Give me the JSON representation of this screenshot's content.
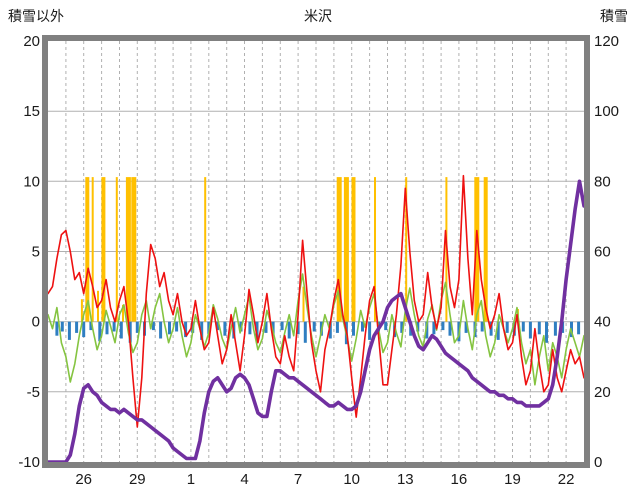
{
  "header": {
    "left_axis_title": "積雪以外",
    "title": "米沢",
    "right_axis_title": "積雪"
  },
  "chart_data": {
    "type": "line",
    "title": "米沢",
    "left_axis_label": "積雪以外",
    "right_axis_label": "積雪",
    "x_range": [
      0,
      30
    ],
    "left_range": [
      -10,
      20
    ],
    "right_range": [
      0,
      120
    ],
    "left_tick_values": [
      20,
      15,
      10,
      5,
      0,
      -5,
      -10
    ],
    "left_tick_labels": [
      "20",
      "15",
      "10",
      "5",
      "0",
      "-5",
      "-10"
    ],
    "right_tick_values": [
      120,
      100,
      80,
      60,
      40,
      20,
      0
    ],
    "right_tick_labels": [
      "120",
      "100",
      "80",
      "60",
      "40",
      "20",
      "0"
    ],
    "x_tick_days": [
      2,
      5,
      8,
      11,
      14,
      17,
      20,
      23,
      26,
      29
    ],
    "x_tick_labels": [
      "26",
      "29",
      "1",
      "4",
      "7",
      "10",
      "13",
      "16",
      "19",
      "22"
    ],
    "grid": {
      "horizontal": "solid",
      "vertical": "dashed-daily"
    },
    "colors": {
      "red": "#ee1111",
      "green": "#85c441",
      "blue": "#2f7ec1",
      "yellow": "#ffc000",
      "purple": "#7030a0",
      "border": "#808080",
      "grid": "#b0b0b0",
      "text": "#1a1a1a"
    },
    "series_start": 0,
    "series_step": 0.25,
    "series": {
      "red_line": {
        "axis": "left",
        "color_key": "red",
        "width": 1.6,
        "values": [
          2.0,
          2.5,
          4.5,
          6.2,
          6.5,
          5.0,
          3.0,
          3.5,
          2.0,
          3.8,
          2.5,
          1.0,
          1.5,
          3.0,
          1.0,
          0.0,
          1.5,
          2.5,
          0.0,
          -4.0,
          -7.5,
          -4.0,
          2.0,
          5.5,
          4.5,
          2.5,
          3.5,
          1.5,
          0.5,
          2.0,
          0.0,
          -1.0,
          -0.5,
          1.5,
          -0.5,
          -2.0,
          -1.5,
          1.0,
          -1.0,
          -3.0,
          -2.0,
          0.5,
          -1.5,
          -3.5,
          -1.0,
          2.3,
          0.5,
          -1.5,
          0.0,
          2.0,
          -0.5,
          -2.5,
          -3.0,
          -1.0,
          -2.5,
          -3.5,
          0.5,
          5.8,
          2.0,
          -1.5,
          -3.5,
          -5.0,
          -2.0,
          -0.5,
          1.5,
          3.0,
          0.5,
          -1.0,
          -4.0,
          -6.8,
          -4.0,
          -1.0,
          1.5,
          2.5,
          -1.0,
          -4.5,
          -4.5,
          -2.0,
          0.5,
          4.0,
          9.5,
          5.0,
          1.5,
          0.0,
          0.5,
          3.5,
          1.0,
          -0.5,
          1.0,
          6.5,
          2.5,
          1.0,
          3.0,
          10.4,
          4.5,
          0.5,
          6.5,
          3.0,
          1.0,
          -0.5,
          0.5,
          2.0,
          -0.5,
          -2.0,
          -1.5,
          0.5,
          -2.5,
          -4.5,
          -3.5,
          -0.5,
          -3.0,
          -5.0,
          -4.5,
          -2.0,
          -4.0,
          -5.0,
          -3.5,
          -2.0,
          -3.0,
          -2.5,
          -4.0
        ]
      },
      "green_line": {
        "axis": "left",
        "color_key": "green",
        "width": 1.6,
        "values": [
          0.5,
          -0.5,
          1.0,
          -1.5,
          -2.5,
          -4.3,
          -3.0,
          -1.0,
          0.5,
          1.5,
          -0.5,
          -2.0,
          -1.0,
          0.8,
          -0.3,
          -1.5,
          0.5,
          1.2,
          -0.8,
          -2.2,
          -1.5,
          0.5,
          1.5,
          -0.5,
          1.0,
          2.0,
          0.0,
          -1.5,
          -0.5,
          1.0,
          -1.0,
          -2.5,
          -1.5,
          0.5,
          -0.5,
          -1.8,
          -0.8,
          1.2,
          0.2,
          -1.2,
          -2.0,
          -0.5,
          1.0,
          -0.8,
          0.5,
          1.8,
          -0.5,
          -2.0,
          -1.2,
          0.8,
          -0.2,
          -1.5,
          -2.2,
          -0.8,
          0.5,
          -1.0,
          1.5,
          3.4,
          1.0,
          -1.0,
          -2.5,
          -1.0,
          0.5,
          -0.5,
          1.2,
          2.2,
          0.2,
          -1.2,
          -2.8,
          -1.2,
          0.8,
          -0.4,
          1.0,
          2.0,
          -0.5,
          -2.2,
          -1.5,
          0.5,
          -0.8,
          -1.8,
          0.8,
          2.4,
          0.5,
          -1.0,
          -1.8,
          0.2,
          1.2,
          -0.6,
          1.5,
          2.8,
          0.5,
          -1.5,
          -1.0,
          1.5,
          -0.5,
          -2.0,
          0.5,
          1.5,
          -1.0,
          -2.5,
          -1.5,
          0.5,
          -0.5,
          -1.5,
          -0.5,
          1.0,
          -1.5,
          -3.0,
          -2.0,
          -4.5,
          -2.5,
          -1.0,
          -3.5,
          -1.5,
          -2.5,
          -4.0,
          -2.0,
          -0.5,
          -1.5,
          -2.5,
          -1.0
        ]
      },
      "purple_line": {
        "axis": "right",
        "color_key": "purple",
        "width": 3.6,
        "values": [
          0,
          0,
          0,
          0,
          0,
          2,
          8,
          16,
          21,
          22,
          20,
          19,
          17,
          16,
          15,
          15,
          14,
          15,
          14,
          13,
          12,
          12,
          11,
          10,
          9,
          8,
          7,
          6,
          4,
          3,
          2,
          1,
          1,
          1,
          6,
          14,
          20,
          23,
          24,
          22,
          20,
          21,
          24,
          25,
          24,
          22,
          18,
          14,
          13,
          13,
          20,
          26,
          26,
          25,
          24,
          24,
          23,
          22,
          21,
          20,
          19,
          18,
          17,
          16,
          16,
          17,
          16,
          15,
          15,
          16,
          20,
          26,
          32,
          36,
          38,
          40,
          44,
          46,
          47,
          48,
          44,
          40,
          36,
          33,
          32,
          34,
          36,
          35,
          33,
          31,
          30,
          29,
          28,
          27,
          26,
          24,
          23,
          22,
          21,
          20,
          20,
          19,
          19,
          18,
          18,
          17,
          17,
          16,
          16,
          16,
          16,
          17,
          18,
          22,
          30,
          40,
          52,
          62,
          72,
          80,
          73
        ]
      },
      "yellow_bars": {
        "axis": "left",
        "color_key": "yellow",
        "bars": [
          [
            1.9,
            1.6,
            2
          ],
          [
            2.2,
            10.3,
            4
          ],
          [
            2.5,
            10.3,
            2
          ],
          [
            2.8,
            2.2,
            2
          ],
          [
            3.1,
            10.3,
            4
          ],
          [
            3.85,
            10.3,
            2
          ],
          [
            4.2,
            1.2,
            2
          ],
          [
            4.5,
            10.3,
            5
          ],
          [
            4.8,
            10.3,
            5
          ],
          [
            8.8,
            10.3,
            2
          ],
          [
            14.3,
            2.5,
            2
          ],
          [
            16.3,
            10.3,
            5
          ],
          [
            16.7,
            10.3,
            5
          ],
          [
            17.1,
            10.3,
            4
          ],
          [
            18.3,
            10.3,
            2
          ],
          [
            20.05,
            10.3,
            2
          ],
          [
            22.3,
            10.3,
            2
          ],
          [
            24.0,
            10.3,
            5
          ],
          [
            24.5,
            10.3,
            4
          ],
          [
            26.3,
            0.9,
            2
          ]
        ]
      },
      "blue_bars": {
        "axis": "left",
        "color_key": "blue",
        "bars": [
          [
            0.5,
            -1.0
          ],
          [
            0.8,
            -0.7
          ],
          [
            1.2,
            -1.3
          ],
          [
            1.6,
            -0.8
          ],
          [
            2.0,
            -1.1
          ],
          [
            2.4,
            -0.6
          ],
          [
            2.9,
            -1.4
          ],
          [
            3.3,
            -0.9
          ],
          [
            3.7,
            -0.7
          ],
          [
            4.1,
            -1.2
          ],
          [
            4.6,
            -1.5
          ],
          [
            5.0,
            -0.8
          ],
          [
            5.4,
            -1.0
          ],
          [
            5.9,
            -0.6
          ],
          [
            6.3,
            -1.2
          ],
          [
            6.8,
            -0.9
          ],
          [
            7.2,
            -0.7
          ],
          [
            7.7,
            -1.1
          ],
          [
            8.1,
            -0.8
          ],
          [
            8.6,
            -1.3
          ],
          [
            9.0,
            -0.9
          ],
          [
            9.5,
            -0.6
          ],
          [
            9.9,
            -1.0
          ],
          [
            10.4,
            -1.2
          ],
          [
            10.8,
            -0.7
          ],
          [
            11.3,
            -0.9
          ],
          [
            11.7,
            -1.4
          ],
          [
            12.2,
            -0.8
          ],
          [
            12.6,
            -1.0
          ],
          [
            13.1,
            -0.6
          ],
          [
            13.5,
            -1.2
          ],
          [
            14.0,
            -0.9
          ],
          [
            14.4,
            -1.5
          ],
          [
            14.9,
            -0.7
          ],
          [
            15.3,
            -1.0
          ],
          [
            15.8,
            -1.2
          ],
          [
            16.2,
            -0.8
          ],
          [
            16.7,
            -1.6
          ],
          [
            17.1,
            -1.0
          ],
          [
            17.6,
            -0.7
          ],
          [
            18.0,
            -1.3
          ],
          [
            18.5,
            -0.9
          ],
          [
            18.9,
            -0.6
          ],
          [
            19.4,
            -1.1
          ],
          [
            19.8,
            -0.8
          ],
          [
            20.3,
            -1.0
          ],
          [
            20.7,
            -0.7
          ],
          [
            21.2,
            -1.2
          ],
          [
            21.6,
            -0.9
          ],
          [
            22.1,
            -0.6
          ],
          [
            22.5,
            -1.0
          ],
          [
            23.0,
            -1.4
          ],
          [
            23.4,
            -0.8
          ],
          [
            23.9,
            -1.1
          ],
          [
            24.3,
            -0.7
          ],
          [
            24.8,
            -1.0
          ],
          [
            25.2,
            -1.3
          ],
          [
            25.7,
            -0.8
          ],
          [
            26.1,
            -1.0
          ],
          [
            26.6,
            -0.7
          ],
          [
            27.0,
            -1.2
          ],
          [
            27.5,
            -0.9
          ],
          [
            27.9,
            -1.5
          ],
          [
            28.4,
            -1.0
          ],
          [
            28.8,
            -0.8
          ],
          [
            29.3,
            -1.1
          ],
          [
            29.7,
            -0.9
          ]
        ]
      }
    }
  }
}
